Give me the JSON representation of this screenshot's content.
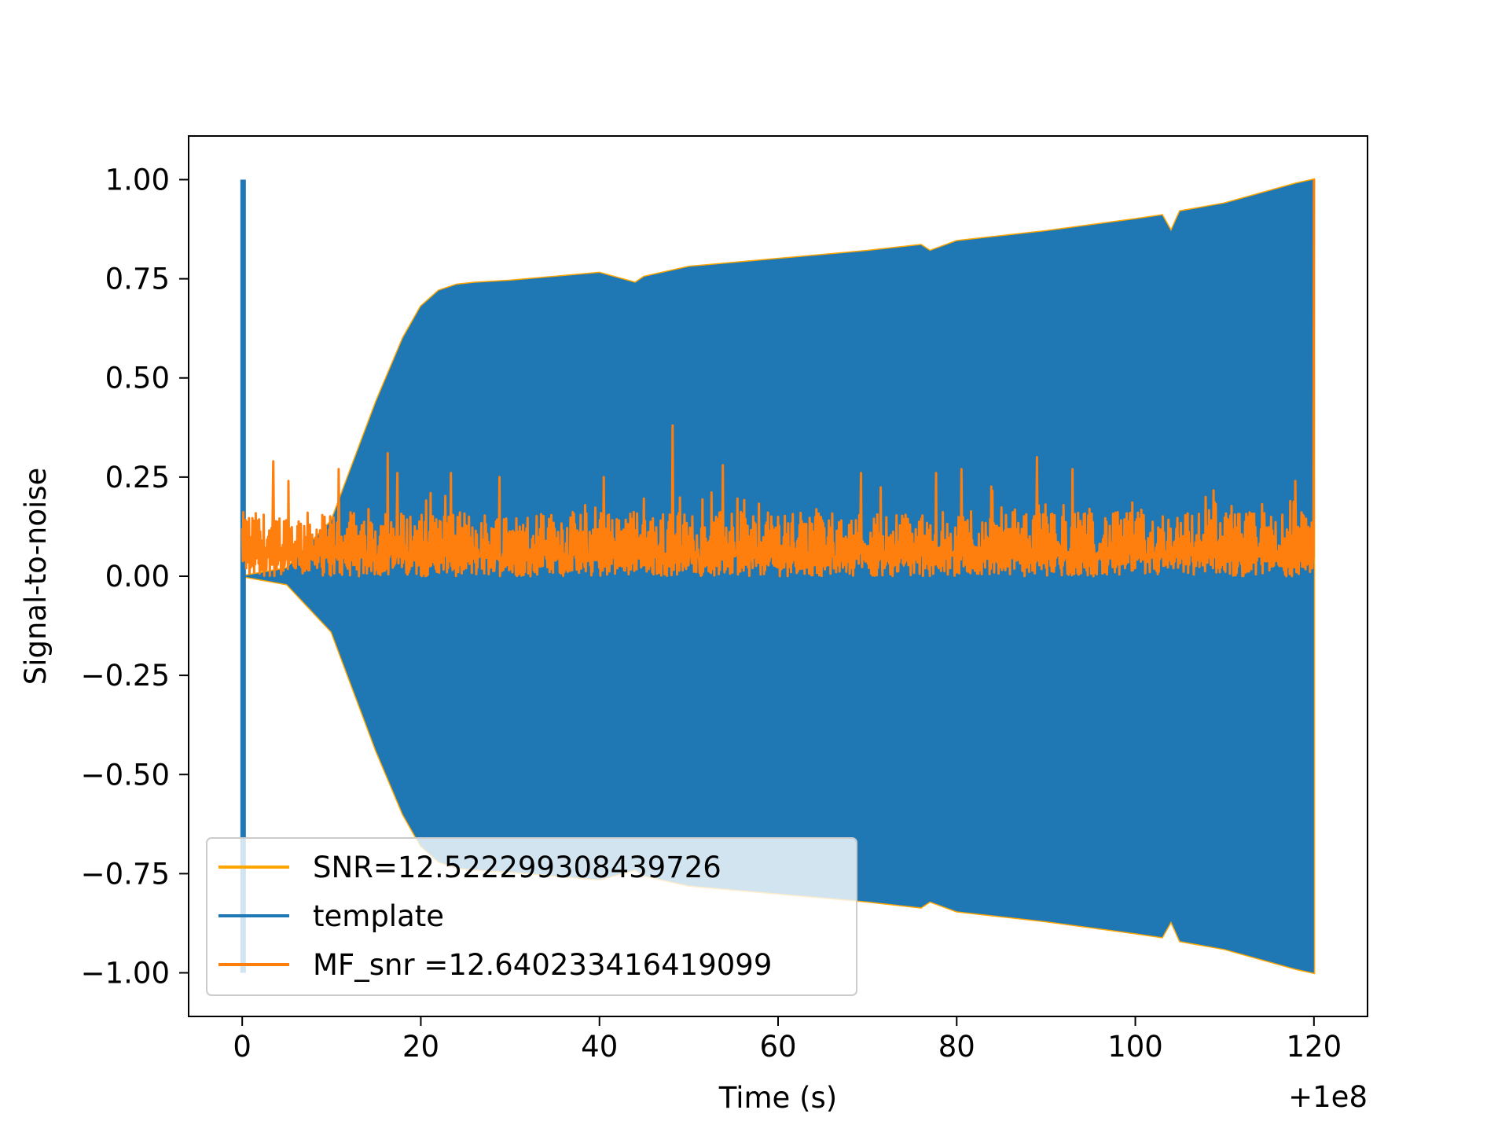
{
  "chart_data": {
    "type": "line",
    "title": "",
    "xlabel": "Time (s)",
    "ylabel": "Signal-to-noise",
    "x_offset_label": "+1e8",
    "xlim": [
      -6,
      126
    ],
    "ylim": [
      -1.11,
      1.11
    ],
    "xticks": [
      0,
      20,
      40,
      60,
      80,
      100,
      120
    ],
    "xtick_labels": [
      "0",
      "20",
      "40",
      "60",
      "80",
      "100",
      "120"
    ],
    "yticks": [
      1.0,
      0.75,
      0.5,
      0.25,
      0.0,
      -0.25,
      -0.5,
      -0.75,
      -1.0
    ],
    "ytick_labels": [
      "1.00",
      "0.75",
      "0.50",
      "0.25",
      "0.00",
      "−0.25",
      "−0.50",
      "−0.75",
      "−1.00"
    ],
    "grid": false,
    "legend_position": "lower-left",
    "series": [
      {
        "name": "SNR=12.522299308439726",
        "color": "#ffa500",
        "kind": "envelope",
        "x": [
          0,
          5,
          10,
          12,
          15,
          18,
          20,
          22,
          24,
          26,
          30,
          40,
          44,
          45,
          50,
          60,
          70,
          76,
          77,
          80,
          90,
          100,
          103,
          104,
          105,
          110,
          118,
          120
        ],
        "upper": [
          0.0,
          0.02,
          0.14,
          0.26,
          0.44,
          0.6,
          0.68,
          0.72,
          0.735,
          0.74,
          0.745,
          0.765,
          0.74,
          0.755,
          0.78,
          0.8,
          0.82,
          0.835,
          0.82,
          0.845,
          0.87,
          0.9,
          0.91,
          0.87,
          0.92,
          0.94,
          0.99,
          1.0
        ],
        "lower": [
          0.0,
          -0.02,
          -0.14,
          -0.26,
          -0.44,
          -0.6,
          -0.68,
          -0.72,
          -0.735,
          -0.74,
          -0.745,
          -0.765,
          -0.74,
          -0.755,
          -0.78,
          -0.8,
          -0.82,
          -0.835,
          -0.82,
          -0.845,
          -0.87,
          -0.9,
          -0.91,
          -0.87,
          -0.92,
          -0.94,
          -0.99,
          -1.0
        ]
      },
      {
        "name": "template",
        "color": "#1f77b4",
        "kind": "envelope",
        "x": [
          0,
          5,
          10,
          12,
          15,
          18,
          20,
          22,
          24,
          26,
          30,
          40,
          44,
          45,
          50,
          60,
          70,
          76,
          77,
          80,
          90,
          100,
          103,
          104,
          105,
          110,
          118,
          120
        ],
        "upper": [
          0.0,
          0.02,
          0.14,
          0.26,
          0.44,
          0.6,
          0.68,
          0.72,
          0.735,
          0.74,
          0.745,
          0.765,
          0.74,
          0.755,
          0.78,
          0.8,
          0.82,
          0.835,
          0.82,
          0.845,
          0.87,
          0.9,
          0.91,
          0.87,
          0.92,
          0.94,
          0.99,
          1.0
        ],
        "lower": [
          0.0,
          -0.02,
          -0.14,
          -0.26,
          -0.44,
          -0.6,
          -0.68,
          -0.72,
          -0.735,
          -0.74,
          -0.745,
          -0.765,
          -0.74,
          -0.755,
          -0.78,
          -0.8,
          -0.82,
          -0.835,
          -0.82,
          -0.845,
          -0.87,
          -0.9,
          -0.91,
          -0.87,
          -0.92,
          -0.94,
          -0.99,
          -1.0
        ],
        "spike": {
          "x": 0.1,
          "top": 1.0,
          "bottom": -1.0
        }
      },
      {
        "name": " MF_snr =12.640233416419099",
        "color": "#ff7f0e",
        "kind": "noise",
        "x_range": [
          0,
          120
        ],
        "baseline": 0.09,
        "min": 0.0,
        "peaks": [
          {
            "x": 3.5,
            "y": 0.29
          },
          {
            "x": 5.2,
            "y": 0.24
          },
          {
            "x": 10.8,
            "y": 0.27
          },
          {
            "x": 16.3,
            "y": 0.31
          },
          {
            "x": 17.4,
            "y": 0.26
          },
          {
            "x": 23.4,
            "y": 0.26
          },
          {
            "x": 28.8,
            "y": 0.25
          },
          {
            "x": 40.5,
            "y": 0.25
          },
          {
            "x": 48.2,
            "y": 0.38
          },
          {
            "x": 53.8,
            "y": 0.28
          },
          {
            "x": 69.3,
            "y": 0.26
          },
          {
            "x": 77.7,
            "y": 0.26
          },
          {
            "x": 80.5,
            "y": 0.27
          },
          {
            "x": 89.0,
            "y": 0.3
          },
          {
            "x": 93.0,
            "y": 0.27
          },
          {
            "x": 117.9,
            "y": 0.24
          },
          {
            "x": 120.0,
            "y": 1.0
          }
        ]
      }
    ]
  }
}
